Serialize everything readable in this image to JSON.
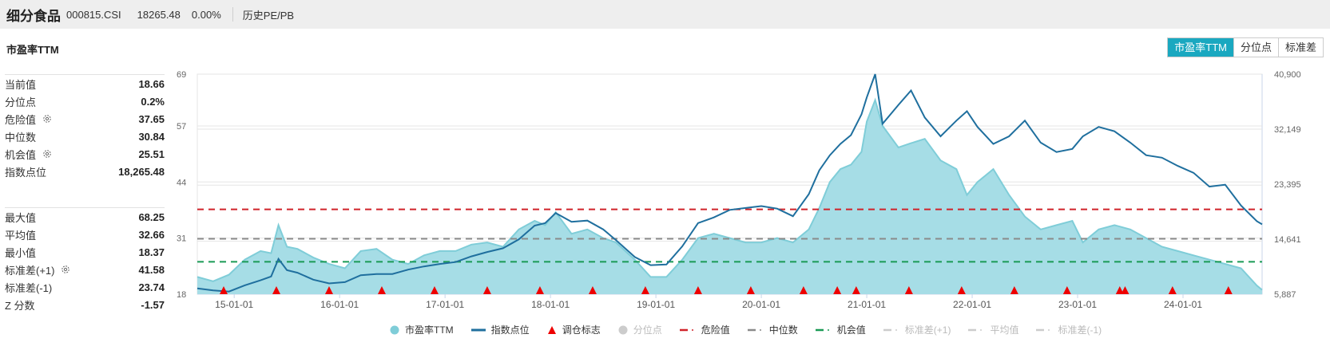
{
  "header": {
    "name": "细分食品",
    "code": "000815.CSI",
    "price": "18265.48",
    "change": "0.00%",
    "history_link": "历史PE/PB"
  },
  "section_title": "市盈率TTM",
  "tabs": [
    {
      "label": "市盈率TTM",
      "active": true
    },
    {
      "label": "分位点",
      "active": false
    },
    {
      "label": "标准差",
      "active": false
    }
  ],
  "stats_group1": [
    {
      "label": "当前值",
      "value": "18.66",
      "gear": false
    },
    {
      "label": "分位点",
      "value": "0.2%",
      "gear": false
    },
    {
      "label": "危险值",
      "value": "37.65",
      "gear": true
    },
    {
      "label": "中位数",
      "value": "30.84",
      "gear": false
    },
    {
      "label": "机会值",
      "value": "25.51",
      "gear": true
    },
    {
      "label": "指数点位",
      "value": "18,265.48",
      "gear": false
    }
  ],
  "stats_group2": [
    {
      "label": "最大值",
      "value": "68.25",
      "gear": false
    },
    {
      "label": "平均值",
      "value": "32.66",
      "gear": false
    },
    {
      "label": "最小值",
      "value": "18.37",
      "gear": false
    },
    {
      "label": "标准差(+1)",
      "value": "41.58",
      "gear": true
    },
    {
      "label": "标准差(-1)",
      "value": "23.74",
      "gear": false
    },
    {
      "label": "Z 分数",
      "value": "-1.57",
      "gear": false
    }
  ],
  "colors": {
    "area_fill": "#a6dde6",
    "area_line": "#7fcdd8",
    "index_line": "#1f6f9e",
    "danger": "#d0232a",
    "median": "#8a8a8a",
    "opportunity": "#1a9a55",
    "marker": "#ee0000",
    "tab_active": "#1aa8c0"
  },
  "legend": [
    {
      "label": "市盈率TTM",
      "type": "circle",
      "color": "#7fcdd8",
      "muted": false
    },
    {
      "label": "指数点位",
      "type": "line",
      "color": "#1f6f9e",
      "muted": false
    },
    {
      "label": "调仓标志",
      "type": "triangle",
      "color": "#ee0000",
      "muted": false
    },
    {
      "label": "分位点",
      "type": "circle",
      "color": "#cccccc",
      "muted": true
    },
    {
      "label": "危险值",
      "type": "dash",
      "color": "#d0232a",
      "muted": false
    },
    {
      "label": "中位数",
      "type": "dash",
      "color": "#8a8a8a",
      "muted": false
    },
    {
      "label": "机会值",
      "type": "dash",
      "color": "#1a9a55",
      "muted": false
    },
    {
      "label": "标准差(+1)",
      "type": "dash",
      "color": "#cccccc",
      "muted": true
    },
    {
      "label": "平均值",
      "type": "dash",
      "color": "#cccccc",
      "muted": true
    },
    {
      "label": "标准差(-1)",
      "type": "dash",
      "color": "#cccccc",
      "muted": true
    }
  ],
  "chart_data": {
    "type": "area",
    "title": "市盈率TTM",
    "x_tick_labels": [
      "15-01-01",
      "16-01-01",
      "17-01-01",
      "18-01-01",
      "19-01-01",
      "20-01-01",
      "21-01-01",
      "22-01-01",
      "23-01-01",
      "24-01-01"
    ],
    "y_left": {
      "ticks": [
        18,
        31,
        44,
        57,
        69
      ],
      "range": [
        18,
        69
      ]
    },
    "y_right": {
      "ticks": [
        "5,887",
        "14,641",
        "23,395",
        "32,149",
        "40,900"
      ],
      "range": [
        5887,
        40900
      ]
    },
    "x_range": [
      2014.65,
      2024.75
    ],
    "reference_lines": {
      "danger": 37.65,
      "median": 30.84,
      "opportunity": 25.51
    },
    "series": [
      {
        "name": "市盈率TTM",
        "axis": "left",
        "x": [
          2014.65,
          2014.8,
          2014.95,
          2015.1,
          2015.25,
          2015.35,
          2015.42,
          2015.5,
          2015.6,
          2015.75,
          2015.9,
          2016.05,
          2016.2,
          2016.35,
          2016.5,
          2016.65,
          2016.8,
          2016.95,
          2017.1,
          2017.25,
          2017.4,
          2017.55,
          2017.7,
          2017.85,
          2017.95,
          2018.05,
          2018.2,
          2018.35,
          2018.5,
          2018.62,
          2018.8,
          2018.95,
          2019.1,
          2019.25,
          2019.4,
          2019.55,
          2019.7,
          2019.85,
          2020.0,
          2020.15,
          2020.3,
          2020.45,
          2020.55,
          2020.65,
          2020.75,
          2020.85,
          2020.95,
          2021.0,
          2021.08,
          2021.15,
          2021.3,
          2021.42,
          2021.55,
          2021.7,
          2021.85,
          2021.95,
          2022.05,
          2022.2,
          2022.35,
          2022.5,
          2022.65,
          2022.8,
          2022.95,
          2023.05,
          2023.2,
          2023.35,
          2023.5,
          2023.65,
          2023.8,
          2023.95,
          2024.1,
          2024.25,
          2024.4,
          2024.55,
          2024.7,
          2024.75
        ],
        "values": [
          22,
          21,
          22.5,
          26,
          28,
          27.5,
          34,
          29,
          28.5,
          26.5,
          25,
          24,
          28,
          28.5,
          26,
          25,
          27,
          28,
          28,
          29.5,
          30,
          29,
          33,
          35,
          34,
          37,
          32,
          33,
          31,
          30,
          26,
          22,
          22,
          26,
          31,
          32,
          31,
          30,
          30,
          31,
          30,
          33,
          38,
          44,
          47,
          48,
          51,
          58,
          63,
          57,
          52,
          53,
          54,
          49,
          47,
          41,
          44,
          47,
          41,
          36,
          33,
          34,
          35,
          30,
          33,
          34,
          33,
          31,
          29,
          28,
          27,
          26,
          25,
          24,
          20,
          19
        ],
        "color": "#7fcdd8"
      },
      {
        "name": "指数点位",
        "axis": "right",
        "x": [
          2014.65,
          2014.8,
          2014.95,
          2015.1,
          2015.25,
          2015.35,
          2015.42,
          2015.5,
          2015.6,
          2015.75,
          2015.9,
          2016.05,
          2016.2,
          2016.35,
          2016.5,
          2016.65,
          2016.8,
          2016.95,
          2017.1,
          2017.25,
          2017.4,
          2017.55,
          2017.7,
          2017.85,
          2017.95,
          2018.05,
          2018.2,
          2018.35,
          2018.5,
          2018.62,
          2018.8,
          2018.95,
          2019.1,
          2019.25,
          2019.4,
          2019.55,
          2019.7,
          2019.85,
          2020.0,
          2020.15,
          2020.3,
          2020.45,
          2020.55,
          2020.65,
          2020.75,
          2020.85,
          2020.95,
          2021.0,
          2021.08,
          2021.15,
          2021.3,
          2021.42,
          2021.55,
          2021.7,
          2021.85,
          2021.95,
          2022.05,
          2022.2,
          2022.35,
          2022.5,
          2022.65,
          2022.8,
          2022.95,
          2023.05,
          2023.2,
          2023.35,
          2023.5,
          2023.65,
          2023.8,
          2023.95,
          2024.1,
          2024.25,
          2024.4,
          2024.55,
          2024.7,
          2024.75
        ],
        "values": [
          6800,
          6500,
          6300,
          7300,
          8100,
          8700,
          11500,
          9700,
          9300,
          8200,
          7600,
          7800,
          8900,
          9100,
          9100,
          9800,
          10300,
          10700,
          11000,
          11900,
          12600,
          13200,
          14600,
          16800,
          17200,
          18800,
          17400,
          17600,
          16200,
          14500,
          11800,
          10500,
          10600,
          13500,
          17200,
          18100,
          19300,
          19600,
          19900,
          19500,
          18300,
          21800,
          25600,
          28000,
          29800,
          31200,
          34500,
          37200,
          40900,
          33000,
          36000,
          38300,
          34000,
          31000,
          33500,
          35000,
          32500,
          29800,
          31000,
          33500,
          30000,
          28500,
          29000,
          31000,
          32500,
          31800,
          30000,
          28000,
          27600,
          26300,
          25200,
          23000,
          23300,
          20000,
          17500,
          17000
        ],
        "color": "#1f6f9e"
      }
    ],
    "rebalance_markers_x": [
      2014.9,
      2015.4,
      2015.9,
      2016.4,
      2016.9,
      2017.4,
      2017.9,
      2018.4,
      2018.9,
      2019.4,
      2019.9,
      2020.4,
      2020.72,
      2020.9,
      2021.4,
      2021.9,
      2022.4,
      2022.9,
      2023.4,
      2023.45,
      2023.9,
      2024.43
    ],
    "legend_position": "bottom",
    "grid": "horizontal"
  }
}
